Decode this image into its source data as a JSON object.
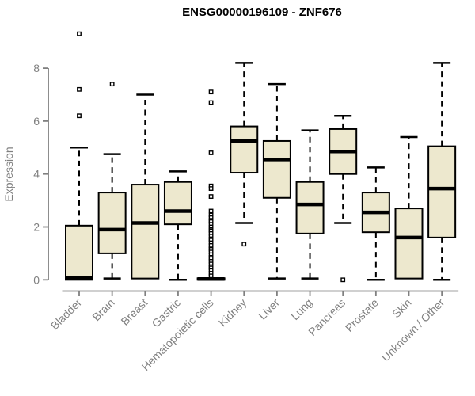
{
  "chart_data": {
    "type": "box",
    "title": "ENSG00000196109 - ZNF676",
    "xlabel": "",
    "ylabel": "Expression",
    "ylim": [
      0,
      9.4
    ],
    "yticks": [
      0,
      2,
      4,
      6,
      8
    ],
    "grid": false,
    "legend": "none",
    "colors": {
      "box_fill": "#EDE8CE",
      "box_stroke": "#000000",
      "axis": "#808080",
      "title": "#000000"
    },
    "categories": [
      "Bladder",
      "Brain",
      "Breast",
      "Gastric",
      "Hematopoietic cells",
      "Kidney",
      "Liver",
      "Lung",
      "Pancreas",
      "Prostate",
      "Skin",
      "Unknown / Other"
    ],
    "boxes": [
      {
        "category": "Bladder",
        "whisker_low": 0,
        "q1": 0,
        "median": 0.07,
        "q3": 2.05,
        "whisker_high": 5.0,
        "outliers": [
          6.2,
          7.2,
          9.3
        ]
      },
      {
        "category": "Brain",
        "whisker_low": 0.05,
        "q1": 1.0,
        "median": 1.9,
        "q3": 3.3,
        "whisker_high": 4.75,
        "outliers": [
          7.4
        ]
      },
      {
        "category": "Breast",
        "whisker_low": 0.05,
        "q1": 0.05,
        "median": 2.15,
        "q3": 3.6,
        "whisker_high": 7.0,
        "outliers": []
      },
      {
        "category": "Gastric",
        "whisker_low": 0,
        "q1": 2.1,
        "median": 2.6,
        "q3": 3.7,
        "whisker_high": 4.1,
        "outliers": []
      },
      {
        "category": "Hematopoietic cells",
        "whisker_low": 0,
        "q1": 0,
        "median": 0.03,
        "q3": 0.06,
        "whisker_high": 0.06,
        "outliers": [
          7.1,
          6.7,
          4.8,
          3.55,
          3.45,
          3.15,
          2.6,
          2.45,
          2.35,
          2.25,
          2.2,
          2.1,
          2.0,
          1.9,
          1.85,
          1.75,
          1.65,
          1.55,
          1.5,
          1.4,
          1.3,
          1.2,
          1.15,
          1.05,
          0.95,
          0.85,
          0.8,
          0.7,
          0.6,
          0.5,
          0.45,
          0.35,
          0.25,
          0.15
        ]
      },
      {
        "category": "Kidney",
        "whisker_low": 2.15,
        "q1": 4.05,
        "median": 5.25,
        "q3": 5.8,
        "whisker_high": 8.2,
        "outliers": [
          1.35
        ]
      },
      {
        "category": "Liver",
        "whisker_low": 0.05,
        "q1": 3.1,
        "median": 4.55,
        "q3": 5.25,
        "whisker_high": 7.4,
        "outliers": []
      },
      {
        "category": "Lung",
        "whisker_low": 0.05,
        "q1": 1.75,
        "median": 2.85,
        "q3": 3.7,
        "whisker_high": 5.65,
        "outliers": []
      },
      {
        "category": "Pancreas",
        "whisker_low": 2.15,
        "q1": 4.0,
        "median": 4.85,
        "q3": 5.7,
        "whisker_high": 6.2,
        "outliers": [
          0.0
        ]
      },
      {
        "category": "Prostate",
        "whisker_low": 0,
        "q1": 1.8,
        "median": 2.55,
        "q3": 3.3,
        "whisker_high": 4.25,
        "outliers": []
      },
      {
        "category": "Skin",
        "whisker_low": 0.05,
        "q1": 0.05,
        "median": 1.6,
        "q3": 2.7,
        "whisker_high": 5.4,
        "outliers": []
      },
      {
        "category": "Unknown / Other",
        "whisker_low": 0,
        "q1": 1.6,
        "median": 3.45,
        "q3": 5.05,
        "whisker_high": 8.2,
        "outliers": []
      }
    ]
  }
}
